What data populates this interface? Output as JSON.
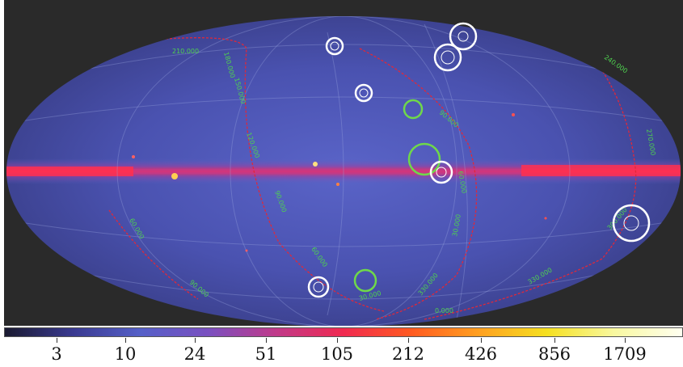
{
  "colors": {
    "background": "#2a2a2a",
    "sky_base": "#4a56b8",
    "plane_hot": "#ff2a55",
    "grid_red": "#e0283a",
    "grid_label_green": "#4fd24f",
    "marker_white": "#ffffff",
    "marker_green": "#6fd84a"
  },
  "grid_labels": [
    {
      "text": "210.000"
    },
    {
      "text": "180.000"
    },
    {
      "text": "150.000"
    },
    {
      "text": "120.000"
    },
    {
      "text": "90.000"
    },
    {
      "text": "60.000"
    },
    {
      "text": "30.000"
    },
    {
      "text": "0.000"
    },
    {
      "text": "60.000"
    },
    {
      "text": "90.000"
    },
    {
      "text": "330.000"
    },
    {
      "text": "300.000"
    },
    {
      "text": "270.000"
    },
    {
      "text": "240.000"
    },
    {
      "text": "90.000"
    },
    {
      "text": "60.000"
    },
    {
      "text": "30.000"
    },
    {
      "text": "330.000"
    }
  ],
  "colorbar": {
    "stops": [
      "#1a1a30",
      "#3a3a90",
      "#5560c8",
      "#7a50c0",
      "#c03a8a",
      "#f02a50",
      "#ff5a20",
      "#ffa020",
      "#f5e020",
      "#f8f8a0",
      "#fffff0"
    ],
    "labels": [
      "3",
      "10",
      "24",
      "51",
      "105",
      "212",
      "426",
      "856",
      "1709"
    ]
  }
}
